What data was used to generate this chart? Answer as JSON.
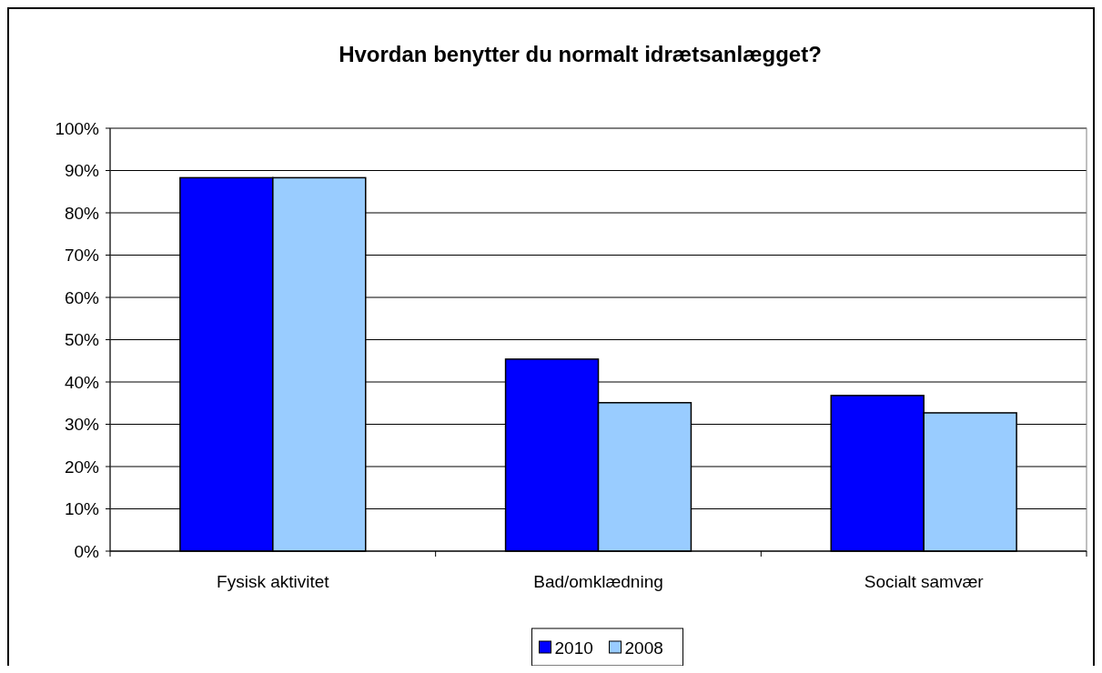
{
  "chart_data": {
    "type": "bar",
    "title": "Hvordan benytter du normalt idrætsanlægget?",
    "categories": [
      "Fysisk aktivitet",
      "Bad/omklædning",
      "Socialt samvær"
    ],
    "series": [
      {
        "name": "2010",
        "color": "#0000ff",
        "values": [
          88.3,
          45.4,
          36.8
        ]
      },
      {
        "name": "2008",
        "color": "#99ccff",
        "values": [
          88.3,
          35.1,
          32.7
        ]
      }
    ],
    "ylim": [
      0,
      100
    ],
    "yticks": [
      {
        "value": 0,
        "label": "0%"
      },
      {
        "value": 10,
        "label": "10%"
      },
      {
        "value": 20,
        "label": "20%"
      },
      {
        "value": 30,
        "label": "30%"
      },
      {
        "value": 40,
        "label": "40%"
      },
      {
        "value": 50,
        "label": "50%"
      },
      {
        "value": 60,
        "label": "60%"
      },
      {
        "value": 70,
        "label": "70%"
      },
      {
        "value": 80,
        "label": "80%"
      },
      {
        "value": 90,
        "label": "90%"
      },
      {
        "value": 100,
        "label": "100%"
      }
    ],
    "grid": "y",
    "legend": "bottom"
  }
}
